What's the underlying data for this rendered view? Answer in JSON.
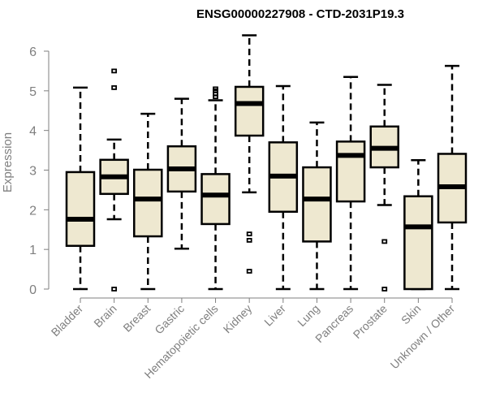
{
  "chart_data": {
    "type": "boxplot",
    "title": "ENSG00000227908 - CTD-2031P19.3",
    "xlabel": "",
    "ylabel": "Expression",
    "ylim": [
      0,
      6
    ],
    "yticks": [
      "0",
      "1",
      "2",
      "3",
      "4",
      "5",
      "6"
    ],
    "grid": false,
    "box_fill": "#eee8d0",
    "line_color": "#000000",
    "axis_color": "#7f7f7f",
    "categories": [
      "Bladder",
      "Brain",
      "Breast",
      "Gastric",
      "Hematopoietic cells",
      "Kidney",
      "Liver",
      "Lung",
      "Pancreas",
      "Prostate",
      "Skin",
      "Unknown / Other"
    ],
    "boxes": [
      {
        "name": "Bladder",
        "whisker_low": 0.0,
        "q1": 1.09,
        "median": 1.76,
        "q3": 2.95,
        "whisker_high": 5.08,
        "outliers": []
      },
      {
        "name": "Brain",
        "whisker_low": 1.76,
        "q1": 2.4,
        "median": 2.83,
        "q3": 3.26,
        "whisker_high": 3.77,
        "outliers": [
          5.5,
          5.08,
          0.0
        ]
      },
      {
        "name": "Breast",
        "whisker_low": 0.0,
        "q1": 1.33,
        "median": 2.27,
        "q3": 3.01,
        "whisker_high": 4.42,
        "outliers": []
      },
      {
        "name": "Gastric",
        "whisker_low": 1.02,
        "q1": 2.46,
        "median": 3.03,
        "q3": 3.6,
        "whisker_high": 4.8,
        "outliers": []
      },
      {
        "name": "Hematopoietic cells",
        "whisker_low": 0.0,
        "q1": 1.64,
        "median": 2.37,
        "q3": 2.9,
        "whisker_high": 4.76,
        "outliers": [
          4.85,
          4.92,
          5.0,
          5.05
        ]
      },
      {
        "name": "Kidney",
        "whisker_low": 2.44,
        "q1": 3.87,
        "median": 4.68,
        "q3": 5.1,
        "whisker_high": 6.4,
        "outliers": [
          1.39,
          1.23,
          0.45
        ]
      },
      {
        "name": "Liver",
        "whisker_low": 0.0,
        "q1": 1.95,
        "median": 2.85,
        "q3": 3.7,
        "whisker_high": 5.12,
        "outliers": []
      },
      {
        "name": "Lung",
        "whisker_low": 0.0,
        "q1": 1.2,
        "median": 2.27,
        "q3": 3.07,
        "whisker_high": 4.2,
        "outliers": []
      },
      {
        "name": "Pancreas",
        "whisker_low": 0.0,
        "q1": 2.21,
        "median": 3.37,
        "q3": 3.72,
        "whisker_high": 5.35,
        "outliers": []
      },
      {
        "name": "Prostate",
        "whisker_low": 2.12,
        "q1": 3.07,
        "median": 3.55,
        "q3": 4.1,
        "whisker_high": 5.15,
        "outliers": [
          1.2,
          0.0
        ]
      },
      {
        "name": "Skin",
        "whisker_low": 0.0,
        "q1": 0.0,
        "median": 1.57,
        "q3": 2.34,
        "whisker_high": 3.25,
        "outliers": []
      },
      {
        "name": "Unknown / Other",
        "whisker_low": 0.0,
        "q1": 1.68,
        "median": 2.58,
        "q3": 3.41,
        "whisker_high": 5.63,
        "outliers": []
      }
    ]
  }
}
